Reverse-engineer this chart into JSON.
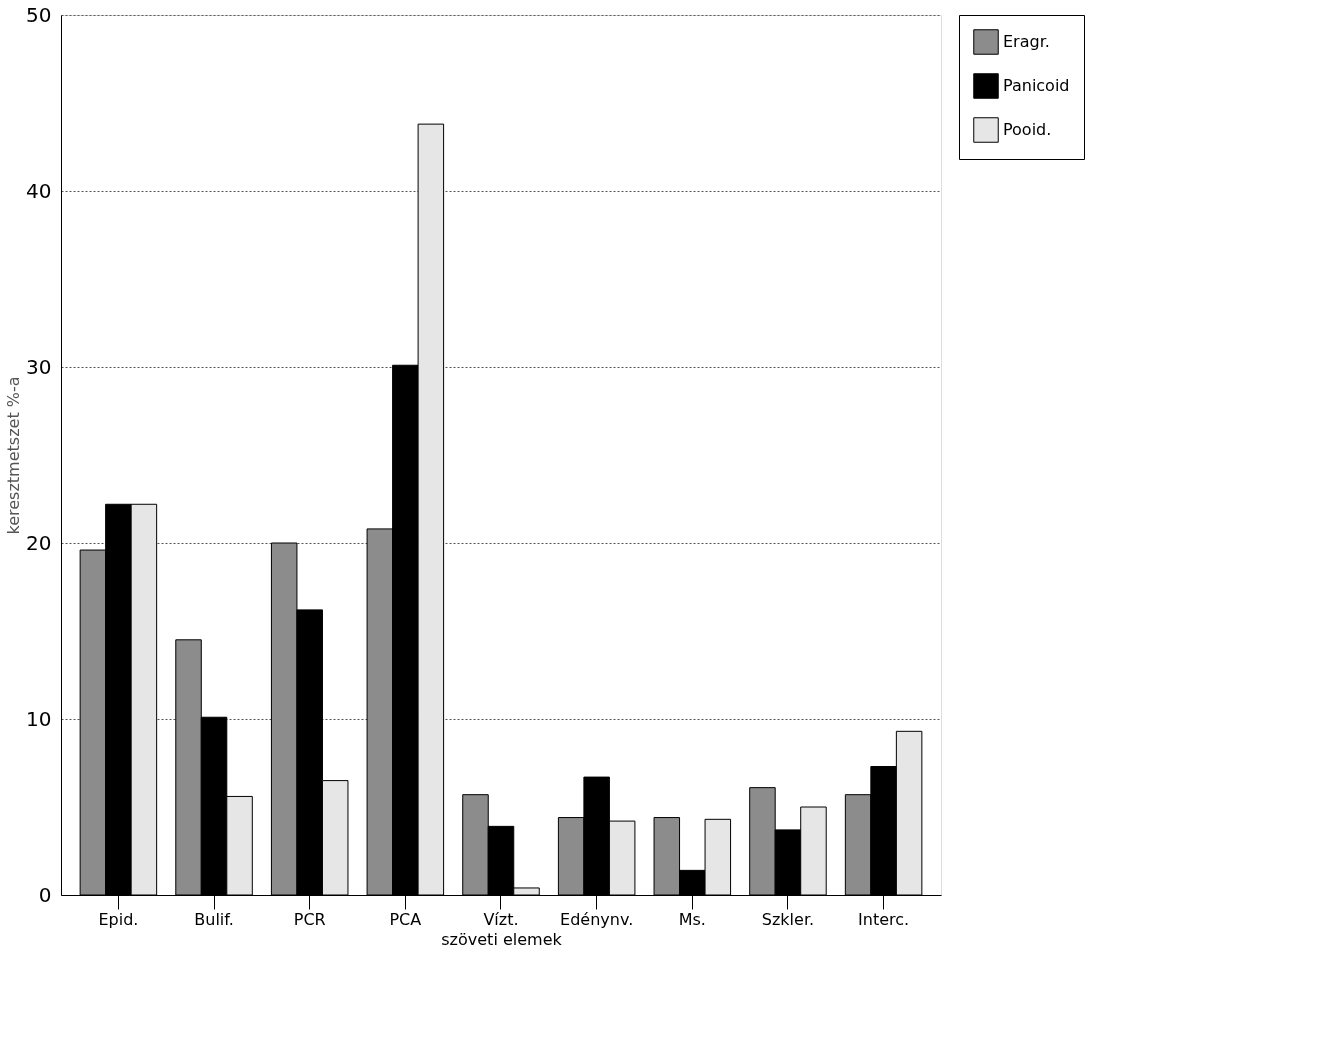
{
  "chart_data": {
    "type": "bar",
    "xlabel": "szöveti elemek",
    "ylabel": "keresztmetszet %-a",
    "categories": [
      "Epid.",
      "Bulif.",
      "PCR",
      "PCA",
      "Vízt.",
      "Edénynv.",
      "Ms.",
      "Szkler.",
      "Interc."
    ],
    "series": [
      {
        "name": "Eragr.",
        "color": "#8c8c8c",
        "values": [
          19.6,
          14.5,
          20.0,
          20.8,
          5.7,
          4.4,
          4.4,
          6.1,
          5.7
        ]
      },
      {
        "name": "Panicoid",
        "color": "#000000",
        "values": [
          22.2,
          10.1,
          16.2,
          30.1,
          3.9,
          6.7,
          1.4,
          3.7,
          7.3
        ]
      },
      {
        "name": "Pooid.",
        "color": "#e6e6e6",
        "values": [
          22.2,
          5.6,
          6.5,
          43.8,
          0.4,
          4.2,
          4.3,
          5.0,
          9.3
        ]
      }
    ],
    "ylim": [
      0,
      50
    ],
    "yticks": [
      0,
      10,
      20,
      30,
      40,
      50
    ],
    "grid": "y",
    "legend": "top right"
  }
}
